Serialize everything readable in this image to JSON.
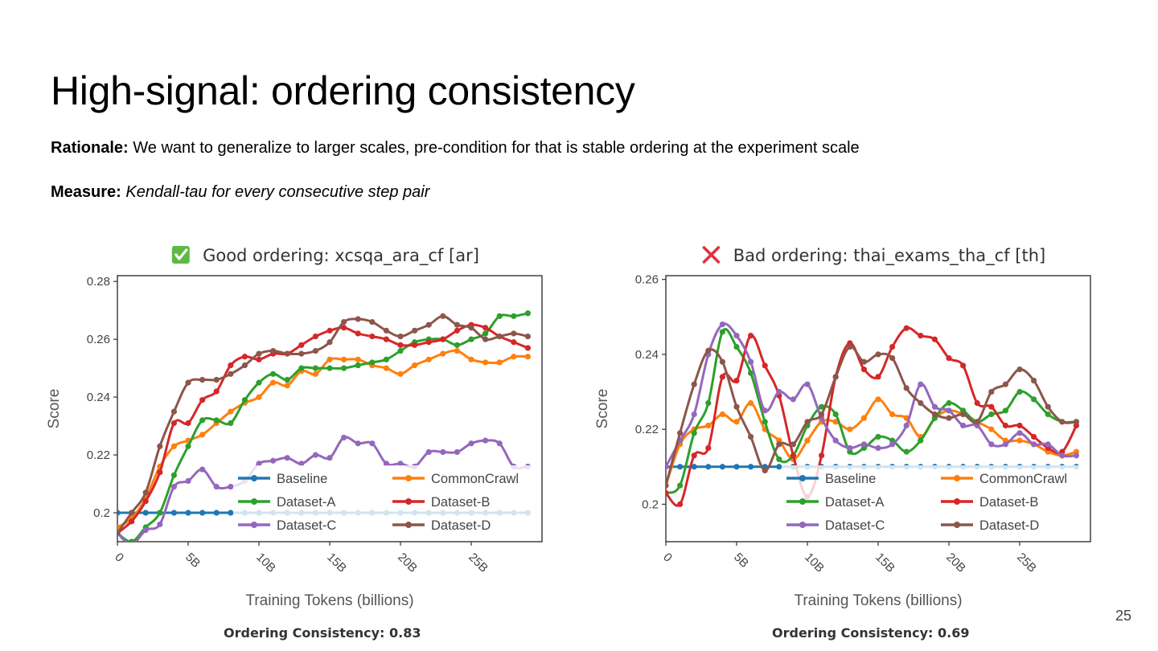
{
  "slide": {
    "title": "High-signal: ordering consistency",
    "rationale_label": "Rationale:",
    "rationale_text": " We want to generalize to larger scales, pre-condition for that is stable ordering at the experiment scale",
    "measure_label": "Measure:",
    "measure_text": "Kendall-tau for every consecutive step pair",
    "page_number": "25",
    "consistency_left": "Ordering Consistency: 0.83",
    "consistency_right": "Ordering Consistency: 0.69"
  },
  "chart_data": [
    {
      "type": "line",
      "title": "Good ordering: xcsqa_ara_cf [ar]",
      "title_icon": "green-check-icon",
      "xlabel": "Training Tokens (billions)",
      "ylabel": "Score",
      "xlim": [
        0,
        30
      ],
      "ylim": [
        0.19,
        0.282
      ],
      "xticks": [
        0,
        5,
        10,
        15,
        20,
        25
      ],
      "xtick_labels": [
        "0",
        "5B",
        "10B",
        "15B",
        "20B",
        "25B"
      ],
      "yticks": [
        0.2,
        0.22,
        0.24,
        0.26,
        0.28
      ],
      "ytick_labels": [
        "0.2",
        "0.22",
        "0.24",
        "0.26",
        "0.28"
      ],
      "grid": false,
      "legend_position": "bottom-right",
      "x": [
        0,
        1,
        2,
        3,
        4,
        5,
        6,
        7,
        8,
        9,
        10,
        11,
        12,
        13,
        14,
        15,
        16,
        17,
        18,
        19,
        20,
        21,
        22,
        23,
        24,
        25,
        26,
        27,
        28,
        29
      ],
      "series": [
        {
          "name": "Baseline",
          "color": "#1f77b4",
          "values": [
            0.2,
            0.2,
            0.2,
            0.2,
            0.2,
            0.2,
            0.2,
            0.2,
            0.2,
            0.2,
            0.2,
            0.2,
            0.2,
            0.2,
            0.2,
            0.2,
            0.2,
            0.2,
            0.2,
            0.2,
            0.2,
            0.2,
            0.2,
            0.2,
            0.2,
            0.2,
            0.2,
            0.2,
            0.2,
            0.2
          ]
        },
        {
          "name": "CommonCrawl",
          "color": "#ff7f0e",
          "values": [
            0.195,
            0.198,
            0.205,
            0.216,
            0.223,
            0.225,
            0.227,
            0.231,
            0.235,
            0.238,
            0.24,
            0.245,
            0.244,
            0.249,
            0.248,
            0.253,
            0.253,
            0.253,
            0.251,
            0.25,
            0.248,
            0.251,
            0.253,
            0.255,
            0.256,
            0.253,
            0.252,
            0.252,
            0.254,
            0.254
          ]
        },
        {
          "name": "Dataset-A",
          "color": "#2ca02c",
          "values": [
            0.193,
            0.19,
            0.195,
            0.2,
            0.213,
            0.223,
            0.232,
            0.232,
            0.231,
            0.239,
            0.245,
            0.248,
            0.246,
            0.25,
            0.25,
            0.25,
            0.25,
            0.251,
            0.252,
            0.253,
            0.256,
            0.259,
            0.26,
            0.26,
            0.258,
            0.26,
            0.262,
            0.268,
            0.268,
            0.269
          ]
        },
        {
          "name": "Dataset-B",
          "color": "#d62728",
          "values": [
            0.193,
            0.197,
            0.204,
            0.214,
            0.231,
            0.231,
            0.239,
            0.242,
            0.251,
            0.254,
            0.253,
            0.255,
            0.255,
            0.258,
            0.261,
            0.263,
            0.264,
            0.262,
            0.261,
            0.26,
            0.258,
            0.258,
            0.259,
            0.26,
            0.263,
            0.265,
            0.264,
            0.261,
            0.259,
            0.257
          ]
        },
        {
          "name": "Dataset-C",
          "color": "#9467bd",
          "values": [
            0.193,
            0.189,
            0.194,
            0.196,
            0.209,
            0.211,
            0.215,
            0.209,
            0.209,
            0.211,
            0.217,
            0.218,
            0.219,
            0.217,
            0.22,
            0.219,
            0.226,
            0.224,
            0.224,
            0.217,
            0.217,
            0.216,
            0.221,
            0.221,
            0.221,
            0.224,
            0.225,
            0.224,
            0.216,
            0.216
          ]
        },
        {
          "name": "Dataset-D",
          "color": "#8c564b",
          "values": [
            0.193,
            0.2,
            0.207,
            0.223,
            0.235,
            0.245,
            0.246,
            0.246,
            0.248,
            0.251,
            0.255,
            0.256,
            0.255,
            0.255,
            0.256,
            0.259,
            0.266,
            0.267,
            0.266,
            0.263,
            0.261,
            0.263,
            0.265,
            0.268,
            0.265,
            0.264,
            0.26,
            0.261,
            0.262,
            0.261
          ]
        }
      ]
    },
    {
      "type": "line",
      "title": "Bad ordering: thai_exams_tha_cf [th]",
      "title_icon": "red-cross-icon",
      "xlabel": "Training Tokens (billions)",
      "ylabel": "Score",
      "xlim": [
        0,
        30
      ],
      "ylim": [
        0.19,
        0.261
      ],
      "xticks": [
        0,
        5,
        10,
        15,
        20,
        25
      ],
      "xtick_labels": [
        "0",
        "5B",
        "10B",
        "15B",
        "20B",
        "25B"
      ],
      "yticks": [
        0.2,
        0.22,
        0.24,
        0.26
      ],
      "ytick_labels": [
        "0.2",
        "0.22",
        "0.24",
        "0.26"
      ],
      "grid": false,
      "legend_position": "bottom-right",
      "x": [
        0,
        1,
        2,
        3,
        4,
        5,
        6,
        7,
        8,
        9,
        10,
        11,
        12,
        13,
        14,
        15,
        16,
        17,
        18,
        19,
        20,
        21,
        22,
        23,
        24,
        25,
        26,
        27,
        28,
        29
      ],
      "series": [
        {
          "name": "Baseline",
          "color": "#1f77b4",
          "values": [
            0.21,
            0.21,
            0.21,
            0.21,
            0.21,
            0.21,
            0.21,
            0.21,
            0.21,
            0.21,
            0.21,
            0.21,
            0.21,
            0.21,
            0.21,
            0.21,
            0.21,
            0.21,
            0.21,
            0.21,
            0.21,
            0.21,
            0.21,
            0.21,
            0.21,
            0.21,
            0.21,
            0.21,
            0.21,
            0.21
          ]
        },
        {
          "name": "CommonCrawl",
          "color": "#ff7f0e",
          "values": [
            0.205,
            0.216,
            0.22,
            0.221,
            0.224,
            0.222,
            0.227,
            0.22,
            0.217,
            0.212,
            0.217,
            0.222,
            0.222,
            0.22,
            0.223,
            0.228,
            0.224,
            0.223,
            0.218,
            0.223,
            0.225,
            0.224,
            0.222,
            0.22,
            0.217,
            0.217,
            0.216,
            0.214,
            0.213,
            0.214
          ]
        },
        {
          "name": "Dataset-A",
          "color": "#2ca02c",
          "values": [
            0.203,
            0.205,
            0.219,
            0.227,
            0.246,
            0.242,
            0.235,
            0.222,
            0.212,
            0.213,
            0.221,
            0.226,
            0.224,
            0.214,
            0.215,
            0.218,
            0.217,
            0.214,
            0.217,
            0.223,
            0.227,
            0.225,
            0.222,
            0.224,
            0.225,
            0.23,
            0.228,
            0.224,
            0.222,
            0.222
          ]
        },
        {
          "name": "Dataset-B",
          "color": "#d62728",
          "values": [
            0.203,
            0.2,
            0.213,
            0.215,
            0.234,
            0.233,
            0.245,
            0.237,
            0.229,
            0.213,
            0.202,
            0.213,
            0.234,
            0.243,
            0.236,
            0.234,
            0.242,
            0.247,
            0.245,
            0.244,
            0.239,
            0.237,
            0.227,
            0.226,
            0.221,
            0.221,
            0.218,
            0.215,
            0.214,
            0.221
          ]
        },
        {
          "name": "Dataset-C",
          "color": "#9467bd",
          "values": [
            0.21,
            0.217,
            0.224,
            0.24,
            0.248,
            0.245,
            0.238,
            0.225,
            0.23,
            0.228,
            0.232,
            0.223,
            0.217,
            0.215,
            0.216,
            0.215,
            0.216,
            0.221,
            0.232,
            0.226,
            0.225,
            0.221,
            0.221,
            0.216,
            0.216,
            0.219,
            0.216,
            0.216,
            0.213,
            0.213
          ]
        },
        {
          "name": "Dataset-D",
          "color": "#8c564b",
          "values": [
            0.205,
            0.219,
            0.232,
            0.241,
            0.238,
            0.226,
            0.218,
            0.209,
            0.216,
            0.216,
            0.222,
            0.224,
            0.234,
            0.242,
            0.238,
            0.24,
            0.239,
            0.231,
            0.227,
            0.224,
            0.223,
            0.224,
            0.222,
            0.23,
            0.232,
            0.236,
            0.233,
            0.226,
            0.222,
            0.222
          ]
        }
      ]
    }
  ]
}
